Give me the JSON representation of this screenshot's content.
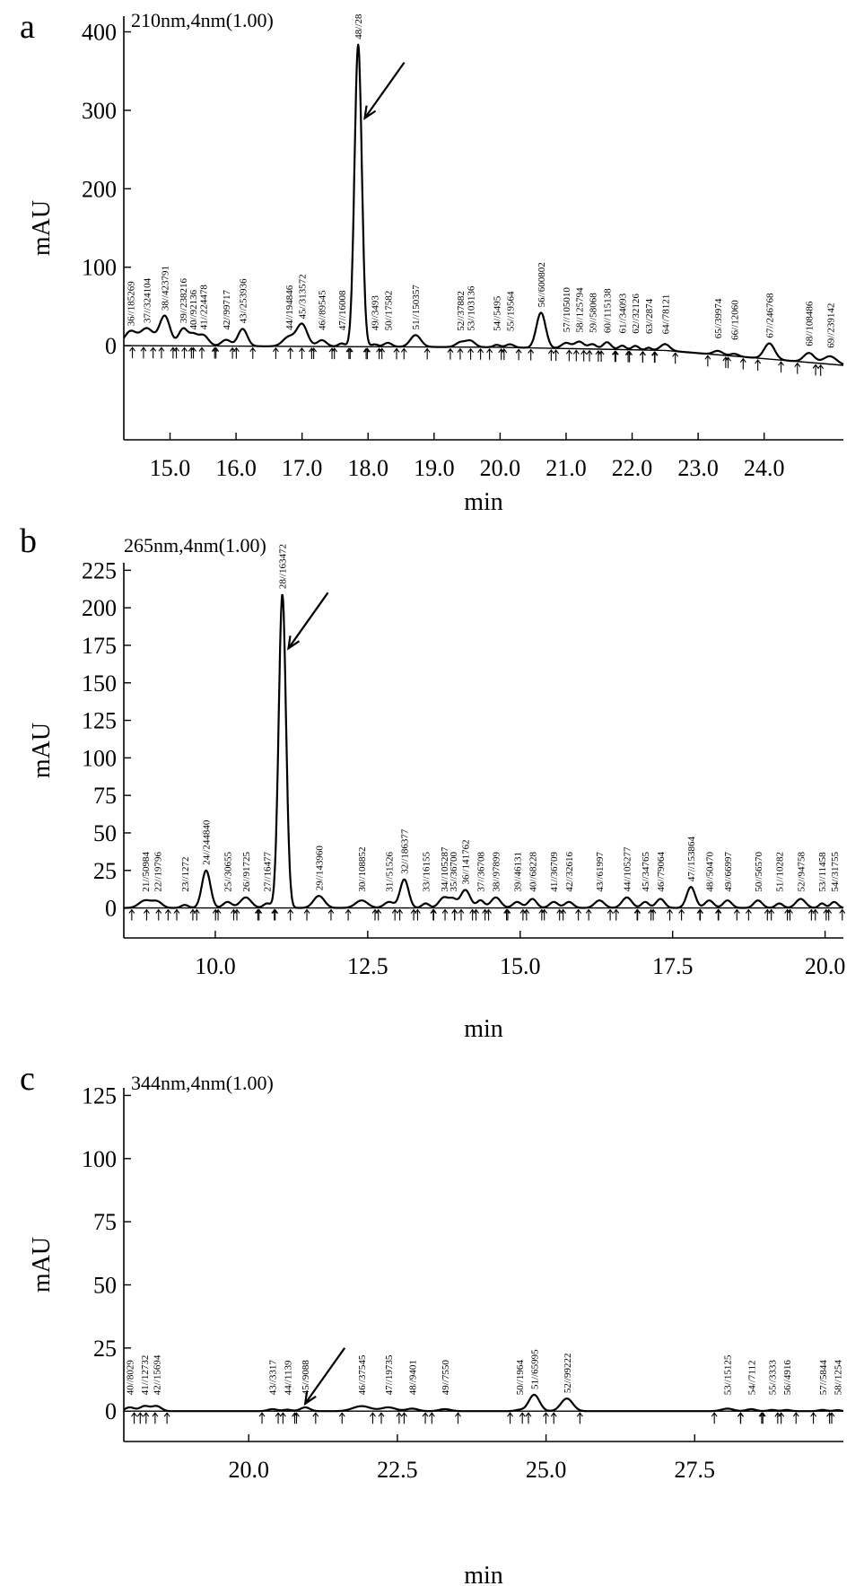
{
  "chart_data": [
    {
      "type": "line",
      "panel_letter": "a",
      "annotation": "210nm,4nm(1.00)",
      "xlabel": "min",
      "ylabel": "mAU",
      "xlim": [
        14.3,
        25.2
      ],
      "ylim": [
        -120,
        420
      ],
      "xticks": [
        "15.0",
        "16.0",
        "17.0",
        "18.0",
        "19.0",
        "20.0",
        "21.0",
        "22.0",
        "23.0",
        "24.0"
      ],
      "xtick_values": [
        15,
        16,
        17,
        18,
        19,
        20,
        21,
        22,
        23,
        24
      ],
      "yticks": [
        "0",
        "100",
        "200",
        "300",
        "400"
      ],
      "ytick_values": [
        0,
        100,
        200,
        300,
        400
      ],
      "baseline": [
        [
          14.3,
          0
        ],
        [
          20.0,
          -2
        ],
        [
          22.5,
          -6
        ],
        [
          25.2,
          -25
        ]
      ],
      "peaks": [
        {
          "label": "36//185269",
          "x": 14.4,
          "height": 18,
          "width": 0.09
        },
        {
          "label": "37//324104",
          "x": 14.65,
          "height": 22,
          "width": 0.1
        },
        {
          "label": "38//423791",
          "x": 14.92,
          "height": 38,
          "width": 0.08
        },
        {
          "label": "39//238216",
          "x": 15.2,
          "height": 22,
          "width": 0.07
        },
        {
          "label": "40//92136",
          "x": 15.35,
          "height": 12,
          "width": 0.06
        },
        {
          "label": "41//224478",
          "x": 15.5,
          "height": 14,
          "width": 0.08
        },
        {
          "label": "42//99717",
          "x": 15.85,
          "height": 8,
          "width": 0.07
        },
        {
          "label": "43//253936",
          "x": 16.1,
          "height": 22,
          "width": 0.07
        },
        {
          "label": "44//194846",
          "x": 16.8,
          "height": 12,
          "width": 0.09
        },
        {
          "label": "45//313572",
          "x": 17.0,
          "height": 28,
          "width": 0.08
        },
        {
          "label": "46//89545",
          "x": 17.3,
          "height": 8,
          "width": 0.07
        },
        {
          "label": "47//16008",
          "x": 17.6,
          "height": 4,
          "width": 0.05
        },
        {
          "label": "48//28",
          "x": 17.85,
          "height": 385,
          "width": 0.055
        },
        {
          "label": "49//3493",
          "x": 18.1,
          "height": 3,
          "width": 0.05
        },
        {
          "label": "50//17582",
          "x": 18.3,
          "height": 5,
          "width": 0.06
        },
        {
          "label": "51//150357",
          "x": 18.72,
          "height": 15,
          "width": 0.08
        },
        {
          "label": "52//37882",
          "x": 19.4,
          "height": 6,
          "width": 0.07
        },
        {
          "label": "53//103136",
          "x": 19.55,
          "height": 8,
          "width": 0.07
        },
        {
          "label": "54//5495",
          "x": 19.95,
          "height": 3,
          "width": 0.05
        },
        {
          "label": "55//19564",
          "x": 20.15,
          "height": 4,
          "width": 0.06
        },
        {
          "label": "56//600802",
          "x": 20.62,
          "height": 45,
          "width": 0.07
        },
        {
          "label": "57//105010",
          "x": 21.0,
          "height": 7,
          "width": 0.07
        },
        {
          "label": "58//125794",
          "x": 21.2,
          "height": 9,
          "width": 0.07
        },
        {
          "label": "59//58068",
          "x": 21.4,
          "height": 6,
          "width": 0.06
        },
        {
          "label": "60//115138",
          "x": 21.62,
          "height": 9,
          "width": 0.06
        },
        {
          "label": "61//34093",
          "x": 21.85,
          "height": 5,
          "width": 0.05
        },
        {
          "label": "62//32126",
          "x": 22.05,
          "height": 5,
          "width": 0.05
        },
        {
          "label": "63//2874",
          "x": 22.25,
          "height": 3,
          "width": 0.04
        },
        {
          "label": "64//78121",
          "x": 22.5,
          "height": 8,
          "width": 0.07
        },
        {
          "label": "65//39974",
          "x": 23.3,
          "height": 5,
          "width": 0.07
        },
        {
          "label": "66//12060",
          "x": 23.55,
          "height": 3,
          "width": 0.06
        },
        {
          "label": "67//246768",
          "x": 24.08,
          "height": 20,
          "width": 0.08
        },
        {
          "label": "68//108486",
          "x": 24.68,
          "height": 12,
          "width": 0.08
        },
        {
          "label": "69//239142",
          "x": 25.0,
          "height": 10,
          "width": 0.1
        }
      ],
      "arrow_target": {
        "x": 17.95,
        "y": 290
      }
    },
    {
      "type": "line",
      "panel_letter": "b",
      "annotation": "265nm,4nm(1.00)",
      "xlabel": "min",
      "ylabel": "mAU",
      "xlim": [
        8.5,
        20.3
      ],
      "ylim": [
        -20,
        230
      ],
      "xticks": [
        "10.0",
        "12.5",
        "15.0",
        "17.5",
        "20.0"
      ],
      "xtick_values": [
        10,
        12.5,
        15,
        17.5,
        20
      ],
      "yticks": [
        "0",
        "25",
        "50",
        "75",
        "100",
        "125",
        "150",
        "175",
        "200",
        "225"
      ],
      "ytick_values": [
        0,
        25,
        50,
        75,
        100,
        125,
        150,
        175,
        200,
        225
      ],
      "baseline": [
        [
          8.5,
          0
        ],
        [
          20.3,
          0
        ]
      ],
      "peaks": [
        {
          "label": "21//50984",
          "x": 8.85,
          "height": 5,
          "width": 0.1
        },
        {
          "label": "22//19796",
          "x": 9.05,
          "height": 4,
          "width": 0.08
        },
        {
          "label": "23//1272",
          "x": 9.5,
          "height": 2,
          "width": 0.06
        },
        {
          "label": "24//244840",
          "x": 9.85,
          "height": 25,
          "width": 0.07
        },
        {
          "label": "25//30655",
          "x": 10.2,
          "height": 4,
          "width": 0.07
        },
        {
          "label": "26//91725",
          "x": 10.5,
          "height": 7,
          "width": 0.09
        },
        {
          "label": "27//16477",
          "x": 10.85,
          "height": 3,
          "width": 0.06
        },
        {
          "label": "28//163472",
          "x": 11.1,
          "height": 209,
          "width": 0.06
        },
        {
          "label": "29//143960",
          "x": 11.7,
          "height": 8,
          "width": 0.09
        },
        {
          "label": "30//108852",
          "x": 12.4,
          "height": 5,
          "width": 0.1
        },
        {
          "label": "31//51526",
          "x": 12.85,
          "height": 4,
          "width": 0.08
        },
        {
          "label": "32//186377",
          "x": 13.1,
          "height": 19,
          "width": 0.07
        },
        {
          "label": "33//16155",
          "x": 13.45,
          "height": 3,
          "width": 0.06
        },
        {
          "label": "34//105287",
          "x": 13.75,
          "height": 7,
          "width": 0.08
        },
        {
          "label": "35//36700",
          "x": 13.9,
          "height": 5,
          "width": 0.06
        },
        {
          "label": "36//141762",
          "x": 14.1,
          "height": 12,
          "width": 0.08
        },
        {
          "label": "37//36708",
          "x": 14.35,
          "height": 5,
          "width": 0.06
        },
        {
          "label": "38//97899",
          "x": 14.6,
          "height": 7,
          "width": 0.08
        },
        {
          "label": "39//46131",
          "x": 14.95,
          "height": 4,
          "width": 0.07
        },
        {
          "label": "40//68228",
          "x": 15.2,
          "height": 6,
          "width": 0.07
        },
        {
          "label": "41//36709",
          "x": 15.55,
          "height": 4,
          "width": 0.07
        },
        {
          "label": "42//32616",
          "x": 15.8,
          "height": 4,
          "width": 0.07
        },
        {
          "label": "43//61997",
          "x": 16.3,
          "height": 5,
          "width": 0.08
        },
        {
          "label": "44//105277",
          "x": 16.75,
          "height": 7,
          "width": 0.08
        },
        {
          "label": "45//34765",
          "x": 17.05,
          "height": 4,
          "width": 0.06
        },
        {
          "label": "46//79064",
          "x": 17.3,
          "height": 6,
          "width": 0.07
        },
        {
          "label": "47//153864",
          "x": 17.8,
          "height": 14,
          "width": 0.07
        },
        {
          "label": "48//50470",
          "x": 18.1,
          "height": 5,
          "width": 0.07
        },
        {
          "label": "49//66997",
          "x": 18.4,
          "height": 5,
          "width": 0.07
        },
        {
          "label": "50//56570",
          "x": 18.9,
          "height": 5,
          "width": 0.07
        },
        {
          "label": "51//10282",
          "x": 19.25,
          "height": 3,
          "width": 0.06
        },
        {
          "label": "52//94758",
          "x": 19.6,
          "height": 6,
          "width": 0.08
        },
        {
          "label": "53//11458",
          "x": 19.95,
          "height": 3,
          "width": 0.05
        },
        {
          "label": "54//31755",
          "x": 20.15,
          "height": 4,
          "width": 0.06
        }
      ],
      "arrow_target": {
        "x": 11.2,
        "y": 173
      }
    },
    {
      "type": "line",
      "panel_letter": "c",
      "annotation": "344nm,4nm(1.00)",
      "xlabel": "min",
      "ylabel": "mAU",
      "xlim": [
        17.9,
        30.0
      ],
      "ylim": [
        -12,
        128
      ],
      "xticks": [
        "20.0",
        "22.5",
        "25.0",
        "27.5"
      ],
      "xtick_values": [
        20,
        22.5,
        25,
        27.5
      ],
      "yticks": [
        "0",
        "25",
        "50",
        "75",
        "100",
        "125"
      ],
      "ytick_values": [
        0,
        25,
        50,
        75,
        100,
        125
      ],
      "baseline": [
        [
          17.9,
          0
        ],
        [
          30.0,
          0
        ]
      ],
      "peaks": [
        {
          "label": "40//8029",
          "x": 18.0,
          "height": 1.5,
          "width": 0.08
        },
        {
          "label": "41//12732",
          "x": 18.25,
          "height": 2,
          "width": 0.08
        },
        {
          "label": "42//15694",
          "x": 18.45,
          "height": 2,
          "width": 0.08
        },
        {
          "label": "43//3317",
          "x": 20.4,
          "height": 0.8,
          "width": 0.08
        },
        {
          "label": "44//1139",
          "x": 20.65,
          "height": 0.6,
          "width": 0.07
        },
        {
          "label": "45//9088",
          "x": 20.95,
          "height": 1.5,
          "width": 0.08
        },
        {
          "label": "46//37545",
          "x": 21.9,
          "height": 2,
          "width": 0.15
        },
        {
          "label": "47//19735",
          "x": 22.35,
          "height": 1.5,
          "width": 0.12
        },
        {
          "label": "48//9401",
          "x": 22.75,
          "height": 1,
          "width": 0.1
        },
        {
          "label": "49//7550",
          "x": 23.3,
          "height": 0.8,
          "width": 0.1
        },
        {
          "label": "50//1964",
          "x": 24.55,
          "height": 0.5,
          "width": 0.07
        },
        {
          "label": "51//65995",
          "x": 24.8,
          "height": 6.5,
          "width": 0.09
        },
        {
          "label": "52//99222",
          "x": 25.35,
          "height": 5,
          "width": 0.1
        },
        {
          "label": "53//15125",
          "x": 28.05,
          "height": 1,
          "width": 0.1
        },
        {
          "label": "54//7112",
          "x": 28.45,
          "height": 0.8,
          "width": 0.08
        },
        {
          "label": "55//3333",
          "x": 28.8,
          "height": 0.5,
          "width": 0.07
        },
        {
          "label": "56//4916",
          "x": 29.05,
          "height": 0.5,
          "width": 0.07
        },
        {
          "label": "57//5844",
          "x": 29.65,
          "height": 0.5,
          "width": 0.07
        },
        {
          "label": "58//1254",
          "x": 29.9,
          "height": 0.4,
          "width": 0.06
        }
      ],
      "arrow_target": {
        "x": 20.95,
        "y": 3
      }
    }
  ]
}
